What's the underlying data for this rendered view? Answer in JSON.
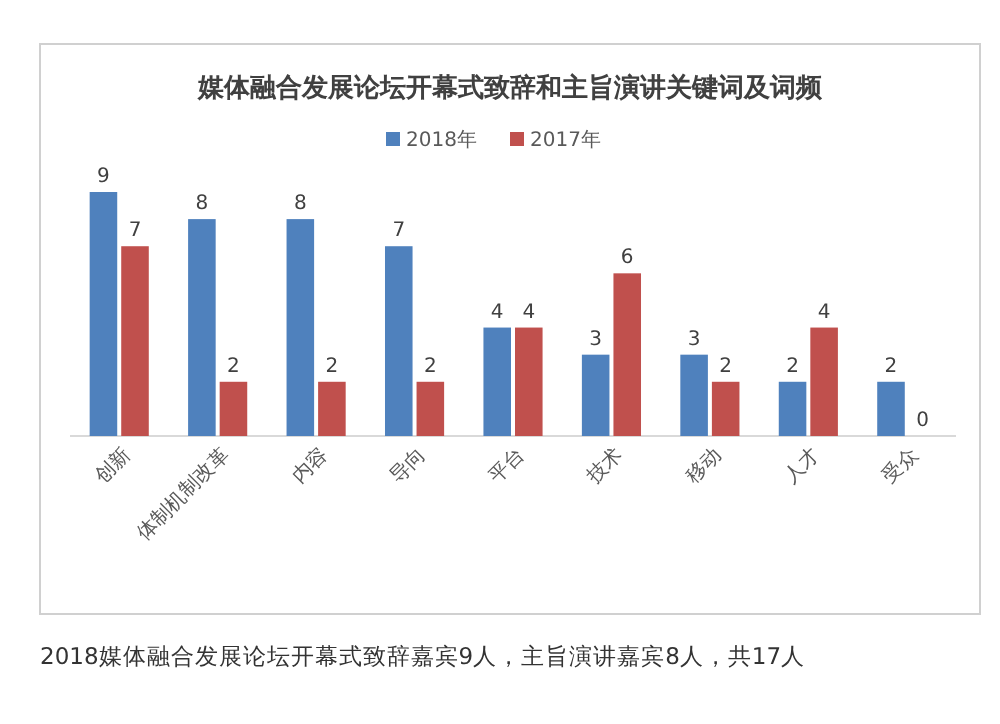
{
  "chart_data": {
    "type": "bar",
    "title": "媒体融合发展论坛开幕式致辞和主旨演讲关键词及词频",
    "categories": [
      "创新",
      "体制机制改革",
      "内容",
      "导向",
      "平台",
      "技术",
      "移动",
      "人才",
      "受众"
    ],
    "series": [
      {
        "name": "2018年",
        "color": "#4f81bd",
        "values": [
          9,
          8,
          8,
          7,
          4,
          3,
          3,
          2,
          2
        ]
      },
      {
        "name": "2017年",
        "color": "#c0504d",
        "values": [
          7,
          2,
          2,
          2,
          4,
          6,
          2,
          4,
          0
        ]
      }
    ],
    "data_labels": true,
    "legend": "top",
    "annotations": [
      "2018媒体融合发展论坛开幕式致辞嘉宾9人，主旨演讲嘉宾8人，共17人"
    ]
  }
}
